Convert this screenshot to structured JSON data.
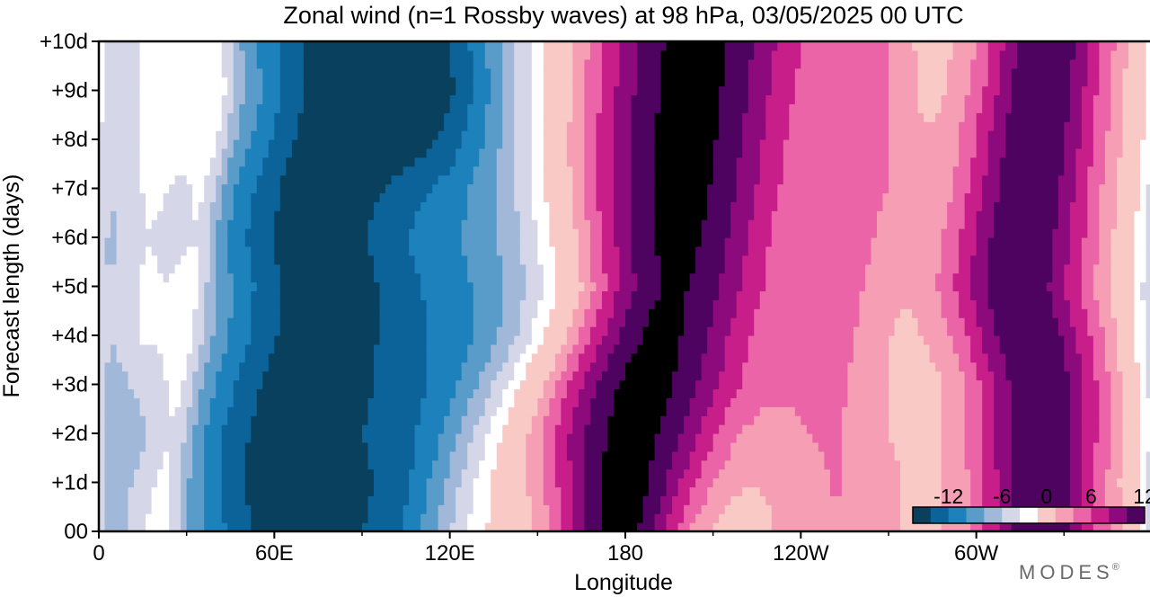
{
  "chart_data": {
    "type": "heatmap",
    "title": "Zonal wind (n=1 Rossby waves) at 98 hPa,  03/05/2025  00 UTC",
    "xlabel": "Longitude",
    "ylabel": "Forecast length (days)",
    "x_ticks": [
      {
        "lon": 0,
        "label": "0"
      },
      {
        "lon": 60,
        "label": "60E"
      },
      {
        "lon": 120,
        "label": "120E"
      },
      {
        "lon": 180,
        "label": "180"
      },
      {
        "lon": 240,
        "label": "120W"
      },
      {
        "lon": 300,
        "label": "60W"
      }
    ],
    "x_minor_ticks": [
      30,
      90,
      150,
      210,
      270,
      330
    ],
    "xlim": [
      0,
      360
    ],
    "y_ticks": [
      {
        "day": 0,
        "label": "00"
      },
      {
        "day": 1,
        "label": "+1d"
      },
      {
        "day": 2,
        "label": "+2d"
      },
      {
        "day": 3,
        "label": "+3d"
      },
      {
        "day": 4,
        "label": "+4d"
      },
      {
        "day": 5,
        "label": "+5d"
      },
      {
        "day": 6,
        "label": "+6d"
      },
      {
        "day": 7,
        "label": "+7d"
      },
      {
        "day": 8,
        "label": "+8d"
      },
      {
        "day": 9,
        "label": "+9d"
      },
      {
        "day": 10,
        "label": "+10d"
      }
    ],
    "ylim": [
      0,
      10
    ],
    "contour_levels": [
      -14,
      -12,
      -10,
      -8,
      -6,
      -4,
      -2,
      2,
      4,
      6,
      8,
      10,
      12,
      14
    ],
    "colors": [
      "#08405e",
      "#0b6399",
      "#1d81bb",
      "#5a9cc9",
      "#a2b8d9",
      "#d5d7e8",
      "#ffffff",
      "#f8c9c5",
      "#f59eb4",
      "#eb64a7",
      "#c81e8a",
      "#8c0a7c",
      "#4e0360"
    ],
    "colorbar_labels": [
      "-12",
      "-6",
      "0",
      "6",
      "12"
    ],
    "colorbar_values": [
      -12,
      -6,
      0,
      6,
      12
    ],
    "zero_band": [
      -2,
      2
    ],
    "features": [
      {
        "sign": "easterly",
        "lon_center": [
          62,
          62,
          63,
          68,
          74,
          75,
          72,
          74,
          80,
          84,
          82
        ],
        "width": [
          62,
          66,
          68,
          70,
          72,
          72,
          70,
          68,
          68,
          68,
          68
        ],
        "peak": -15
      },
      {
        "sign": "easterly",
        "lon_center": [
          104,
          106,
          112,
          122,
          135,
          140,
          136,
          130,
          126,
          124,
          124
        ],
        "width": [
          36,
          38,
          44,
          50,
          54,
          58,
          56,
          52,
          50,
          48,
          48
        ],
        "peak": -7
      },
      {
        "sign": "easterly",
        "lon_center": [
          4,
          4,
          6,
          4,
          2,
          2,
          3,
          4,
          5,
          6,
          6
        ],
        "width": [
          14,
          14,
          16,
          16,
          16,
          16,
          16,
          16,
          16,
          16,
          16
        ],
        "peak": -5
      },
      {
        "sign": "westerly",
        "lon_center": [
          178,
          180,
          182,
          186,
          190,
          194,
          196,
          198,
          200,
          202,
          204
        ],
        "width": [
          34,
          42,
          50,
          56,
          56,
          56,
          58,
          60,
          60,
          60,
          60
        ],
        "peak": 13
      },
      {
        "sign": "westerly",
        "lon_center": [
          322,
          322,
          322,
          322,
          318,
          314,
          316,
          318,
          320,
          322,
          324
        ],
        "width": [
          36,
          36,
          38,
          38,
          40,
          40,
          40,
          38,
          38,
          36,
          36
        ],
        "peak": 12
      },
      {
        "sign": "westerly",
        "lon_center": [
          252,
          252,
          250,
          250,
          252,
          254,
          258,
          262,
          262,
          262,
          262
        ],
        "width": [
          40,
          40,
          36,
          34,
          30,
          28,
          26,
          26,
          26,
          26,
          26
        ],
        "peak": 4
      },
      {
        "sign": "westerly",
        "lon_center": [
          22,
          24,
          26,
          28,
          30,
          32,
          34,
          36,
          38,
          40,
          40
        ],
        "width": [
          8,
          9,
          10,
          10,
          10,
          10,
          10,
          10,
          10,
          10,
          10
        ],
        "peak": 3
      }
    ]
  },
  "watermark": {
    "label": "MODES",
    "mark": "®"
  }
}
